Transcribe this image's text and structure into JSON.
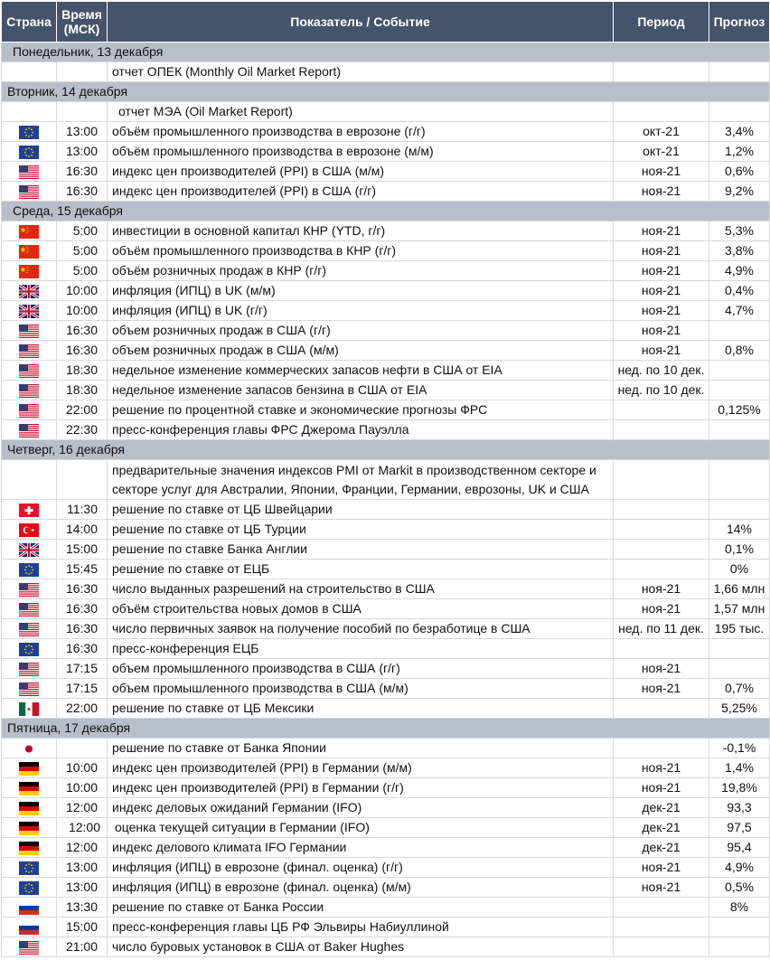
{
  "header": {
    "country": "Страна",
    "time_line1": "Время",
    "time_line2": "(МСК)",
    "event": "Показатель / Событие",
    "period": "Период",
    "forecast": "Прогноз"
  },
  "days": [
    {
      "label": "Понедельник, 13 декабря",
      "rows": [
        {
          "flag": "",
          "time": "",
          "event": "отчет ОПЕК (Monthly Oil Market Report)",
          "period": "",
          "forecast": ""
        }
      ]
    },
    {
      "label": "Вторник, 14 декабря",
      "rows": [
        {
          "flag": "",
          "time": "",
          "event": "отчет МЭА (Oil Market Report)",
          "period": "",
          "forecast": ""
        },
        {
          "flag": "eu-flag-icon",
          "time": "13:00",
          "event": "объём промышленного производства в еврозоне (г/г)",
          "period": "окт-21",
          "forecast": "3,4%"
        },
        {
          "flag": "eu-flag-icon",
          "time": "13:00",
          "event": "объём промышленного производства в еврозоне (м/м)",
          "period": "окт-21",
          "forecast": "1,2%"
        },
        {
          "flag": "us-flag-icon",
          "time": "16:30",
          "event": "индекс цен производителей (PPI) в США (м/м)",
          "period": "ноя-21",
          "forecast": "0,6%"
        },
        {
          "flag": "us-flag-icon",
          "time": "16:30",
          "event": "индекс цен производителей (PPI) в США (г/г)",
          "period": "ноя-21",
          "forecast": "9,2%"
        }
      ]
    },
    {
      "label": "Среда, 15 декабря",
      "rows": [
        {
          "flag": "cn-flag-icon",
          "time": "5:00",
          "event": "инвестиции в основной капитал КНР (YTD, г/г)",
          "period": "ноя-21",
          "forecast": "5,3%"
        },
        {
          "flag": "cn-flag-icon",
          "time": "5:00",
          "event": "объём промышленного производства в КНР (г/г)",
          "period": "ноя-21",
          "forecast": "3,8%"
        },
        {
          "flag": "cn-flag-icon",
          "time": "5:00",
          "event": "объём розничных продаж в КНР (г/г)",
          "period": "ноя-21",
          "forecast": "4,9%"
        },
        {
          "flag": "uk-flag-icon",
          "time": "10:00",
          "event": "инфляция (ИПЦ) в UK (м/м)",
          "period": "ноя-21",
          "forecast": "0,4%"
        },
        {
          "flag": "uk-flag-icon",
          "time": "10:00",
          "event": "инфляция (ИПЦ) в UK (г/г)",
          "period": "ноя-21",
          "forecast": "4,7%"
        },
        {
          "flag": "us-flag-icon",
          "time": "16:30",
          "event": "объем розничных продаж в США (г/г)",
          "period": "ноя-21",
          "forecast": ""
        },
        {
          "flag": "us-flag-icon",
          "time": "16:30",
          "event": "объем розничных продаж в США (м/м)",
          "period": "ноя-21",
          "forecast": "0,8%"
        },
        {
          "flag": "us-flag-icon",
          "time": "18:30",
          "event": "недельное изменение коммерческих запасов нефти в США от EIA",
          "period": "нед. по 10 дек.",
          "forecast": ""
        },
        {
          "flag": "us-flag-icon",
          "time": "18:30",
          "event": "недельное изменение запасов бензина в США от EIA",
          "period": "нед. по 10 дек.",
          "forecast": ""
        },
        {
          "flag": "us-flag-icon",
          "time": "22:00",
          "event": "решение по процентной ставке и экономические прогнозы ФРС",
          "period": "",
          "forecast": "0,125%"
        },
        {
          "flag": "us-flag-icon",
          "time": "22:30",
          "event": "пресс-конференция главы ФРС Джерома Пауэлла",
          "period": "",
          "forecast": ""
        }
      ]
    },
    {
      "label": "Четверг, 16 декабря",
      "rows": [
        {
          "flag": "",
          "time": "",
          "event": "предварительные значения индексов PMI от Markit в производственном секторе и секторе услуг для Австралии, Японии, Франции, Германии, еврозоны, UK и США",
          "period": "",
          "forecast": "",
          "wrap": true
        },
        {
          "flag": "ch-flag-icon",
          "time": "11:30",
          "event": "решение по ставке от ЦБ Швейцарии",
          "period": "",
          "forecast": ""
        },
        {
          "flag": "tr-flag-icon",
          "time": "14:00",
          "event": "решение по ставке от ЦБ Турции",
          "period": "",
          "forecast": "14%"
        },
        {
          "flag": "uk-flag-icon",
          "time": "15:00",
          "event": "решение по ставке Банка Англии",
          "period": "",
          "forecast": "0,1%"
        },
        {
          "flag": "eu-flag-icon",
          "time": "15:45",
          "event": "решение по ставке от ЕЦБ",
          "period": "",
          "forecast": "0%"
        },
        {
          "flag": "us-flag-icon",
          "time": "16:30",
          "event": "число выданных разрешений на строительство в США",
          "period": "ноя-21",
          "forecast": "1,66 млн"
        },
        {
          "flag": "us-flag-icon",
          "time": "16:30",
          "event": "объём строительства новых домов в США",
          "period": "ноя-21",
          "forecast": "1,57 млн"
        },
        {
          "flag": "us-flag-icon",
          "time": "16:30",
          "event": "число первичных заявок на получение пособий по безработице в США",
          "period": "нед. по 11 дек.",
          "forecast": "195 тыс."
        },
        {
          "flag": "eu-flag-icon",
          "time": "16:30",
          "event": "пресс-конференция ЕЦБ",
          "period": "",
          "forecast": ""
        },
        {
          "flag": "us-flag-icon",
          "time": "17:15",
          "event": "объем промышленного производства в США (г/г)",
          "period": "ноя-21",
          "forecast": ""
        },
        {
          "flag": "us-flag-icon",
          "time": "17:15",
          "event": "объем промышленного производства в США (м/м)",
          "period": "ноя-21",
          "forecast": "0,7%"
        },
        {
          "flag": "mx-flag-icon",
          "time": "22:00",
          "event": "решение по ставке от ЦБ Мексики",
          "period": "",
          "forecast": "5,25%"
        }
      ]
    },
    {
      "label": "Пятница, 17 декабря",
      "rows": [
        {
          "flag": "jp-flag-icon",
          "time": "",
          "event": "решение по ставке от Банка Японии",
          "period": "",
          "forecast": "-0,1%"
        },
        {
          "flag": "de-flag-icon",
          "time": "10:00",
          "event": "индекс цен производителей (PPI) в Германии (м/м)",
          "period": "ноя-21",
          "forecast": "1,4%"
        },
        {
          "flag": "de-flag-icon",
          "time": "10:00",
          "event": "индекс цен производителей (PPI) в Германии (г/г)",
          "period": "ноя-21",
          "forecast": "19,8%"
        },
        {
          "flag": "de-flag-icon",
          "time": "12:00",
          "event": "индекс деловых ожиданий Германии (IFO)",
          "period": "дек-21",
          "forecast": "93,3"
        },
        {
          "flag": "de-flag-icon",
          "time": "12:00",
          "event": "оценка текущей ситуации в Германии (IFO)",
          "period": "дек-21",
          "forecast": "97,5",
          "shift": true
        },
        {
          "flag": "de-flag-icon",
          "time": "12:00",
          "event": "индекс делового климата IFO Германии",
          "period": "дек-21",
          "forecast": "95,4"
        },
        {
          "flag": "eu-flag-icon",
          "time": "13:00",
          "event": "инфляция (ИПЦ) в еврозоне (финал. оценка) (г/г)",
          "period": "ноя-21",
          "forecast": "4,9%"
        },
        {
          "flag": "eu-flag-icon",
          "time": "13:00",
          "event": "инфляция (ИПЦ) в еврозоне (финал. оценка) (м/м)",
          "period": "ноя-21",
          "forecast": "0,5%"
        },
        {
          "flag": "ru-flag-icon",
          "time": "13:30",
          "event": "решение по ставке от Банка России",
          "period": "",
          "forecast": "8%"
        },
        {
          "flag": "ru-flag-icon",
          "time": "15:00",
          "event": "пресс-конференция главы ЦБ РФ Эльвиры Набиуллиной",
          "period": "",
          "forecast": ""
        },
        {
          "flag": "us-flag-icon",
          "time": "21:00",
          "event": "число буровых установок в США от Baker Hughes",
          "period": "",
          "forecast": ""
        }
      ]
    }
  ]
}
